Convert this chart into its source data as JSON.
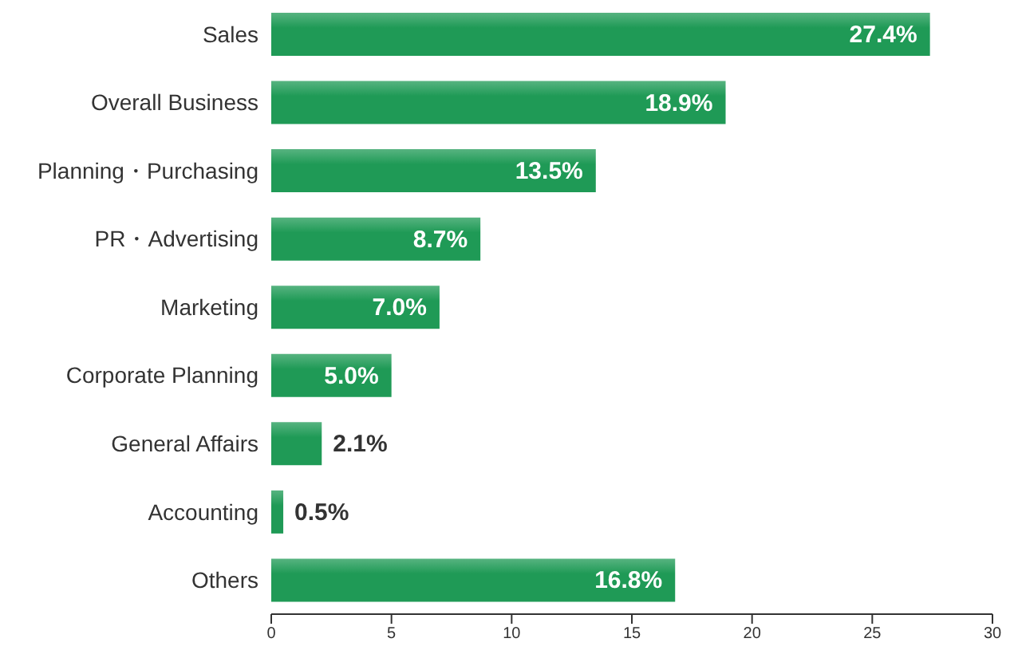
{
  "chart_data": {
    "type": "bar",
    "orientation": "horizontal",
    "categories": [
      "Sales",
      "Overall Business",
      "Planning・Purchasing",
      "PR・Advertising",
      "Marketing",
      "Corporate Planning",
      "General Affairs",
      "Accounting",
      "Others"
    ],
    "values": [
      27.4,
      18.9,
      13.5,
      8.7,
      7.0,
      5.0,
      2.1,
      0.5,
      16.8
    ],
    "value_labels": [
      "27.4%",
      "18.9%",
      "13.5%",
      "8.7%",
      "7.0%",
      "5.0%",
      "2.1%",
      "0.5%",
      "16.8%"
    ],
    "color": "#1f9a56",
    "xlim": [
      0,
      30
    ],
    "xticks": [
      0,
      5,
      10,
      15,
      20,
      25,
      30
    ],
    "grid": false
  }
}
